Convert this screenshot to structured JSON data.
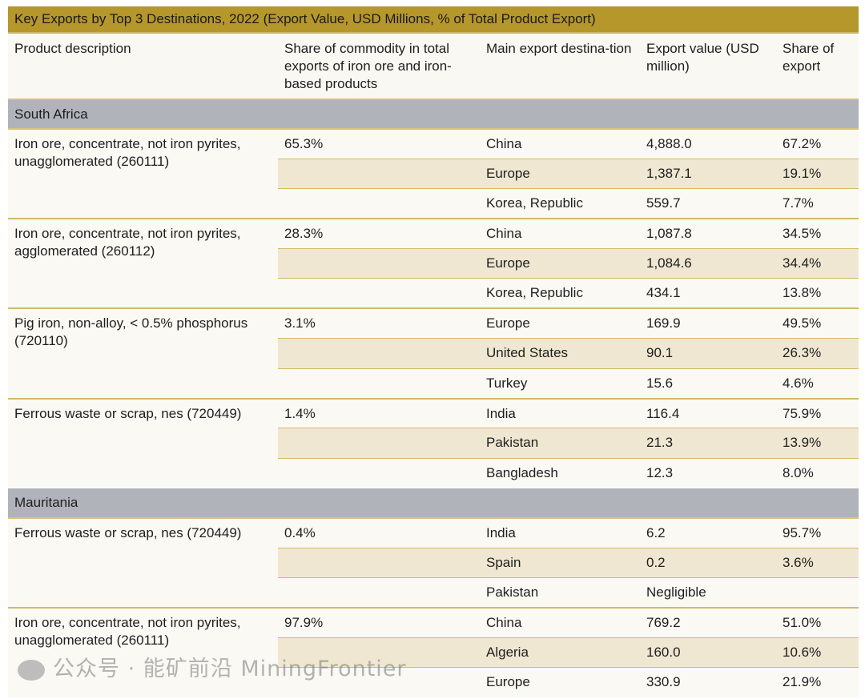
{
  "title": "Key Exports by Top 3 Destinations, 2022 (Export Value, USD Millions, % of Total Product Export)",
  "headers": [
    "Product description",
    "Share of commodity in total exports of iron ore and iron-based products",
    "Main export destina-tion",
    "Export value (USD million)",
    "Share of export"
  ],
  "groups": [
    {
      "country": "South Africa",
      "products": [
        {
          "description": "Iron ore, concentrate, not iron pyrites, unagglomerated (260111)",
          "share": "65.3%",
          "rows": [
            {
              "dest": "China",
              "value": "4,888.0",
              "pct": "67.2%"
            },
            {
              "dest": "Europe",
              "value": "1,387.1",
              "pct": "19.1%"
            },
            {
              "dest": "Korea, Republic",
              "value": "559.7",
              "pct": "7.7%"
            }
          ]
        },
        {
          "description": "Iron ore, concentrate, not iron pyrites, agglomerated (260112)",
          "share": "28.3%",
          "rows": [
            {
              "dest": "China",
              "value": "1,087.8",
              "pct": "34.5%"
            },
            {
              "dest": "Europe",
              "value": "1,084.6",
              "pct": "34.4%"
            },
            {
              "dest": "Korea, Republic",
              "value": "434.1",
              "pct": "13.8%"
            }
          ]
        },
        {
          "description": "Pig iron, non-alloy, < 0.5% phosphorus (720110)",
          "share": "3.1%",
          "rows": [
            {
              "dest": "Europe",
              "value": "169.9",
              "pct": "49.5%"
            },
            {
              "dest": "United States",
              "value": "90.1",
              "pct": "26.3%"
            },
            {
              "dest": "Turkey",
              "value": "15.6",
              "pct": "4.6%"
            }
          ]
        },
        {
          "description": "Ferrous waste or scrap, nes (720449)",
          "share": "1.4%",
          "rows": [
            {
              "dest": "India",
              "value": "116.4",
              "pct": "75.9%"
            },
            {
              "dest": "Pakistan",
              "value": "21.3",
              "pct": "13.9%"
            },
            {
              "dest": "Bangladesh",
              "value": "12.3",
              "pct": "8.0%"
            }
          ]
        }
      ]
    },
    {
      "country": "Mauritania",
      "products": [
        {
          "description": "Ferrous waste or scrap, nes (720449)",
          "share": "0.4%",
          "rows": [
            {
              "dest": "India",
              "value": "6.2",
              "pct": "95.7%"
            },
            {
              "dest": "Spain",
              "value": "0.2",
              "pct": "3.6%"
            },
            {
              "dest": "Pakistan",
              "value": "Negligible",
              "pct": ""
            }
          ]
        },
        {
          "description": "Iron ore, concentrate, not iron pyrites, unagglomerated (260111)",
          "share": "97.9%",
          "rows": [
            {
              "dest": "China",
              "value": "769.2",
              "pct": "51.0%"
            },
            {
              "dest": "Algeria",
              "value": "160.0",
              "pct": "10.6%"
            },
            {
              "dest": "Europe",
              "value": "330.9",
              "pct": "21.9%"
            }
          ]
        }
      ]
    }
  ],
  "watermark": "公众号 · 能矿前沿 MiningFrontier"
}
